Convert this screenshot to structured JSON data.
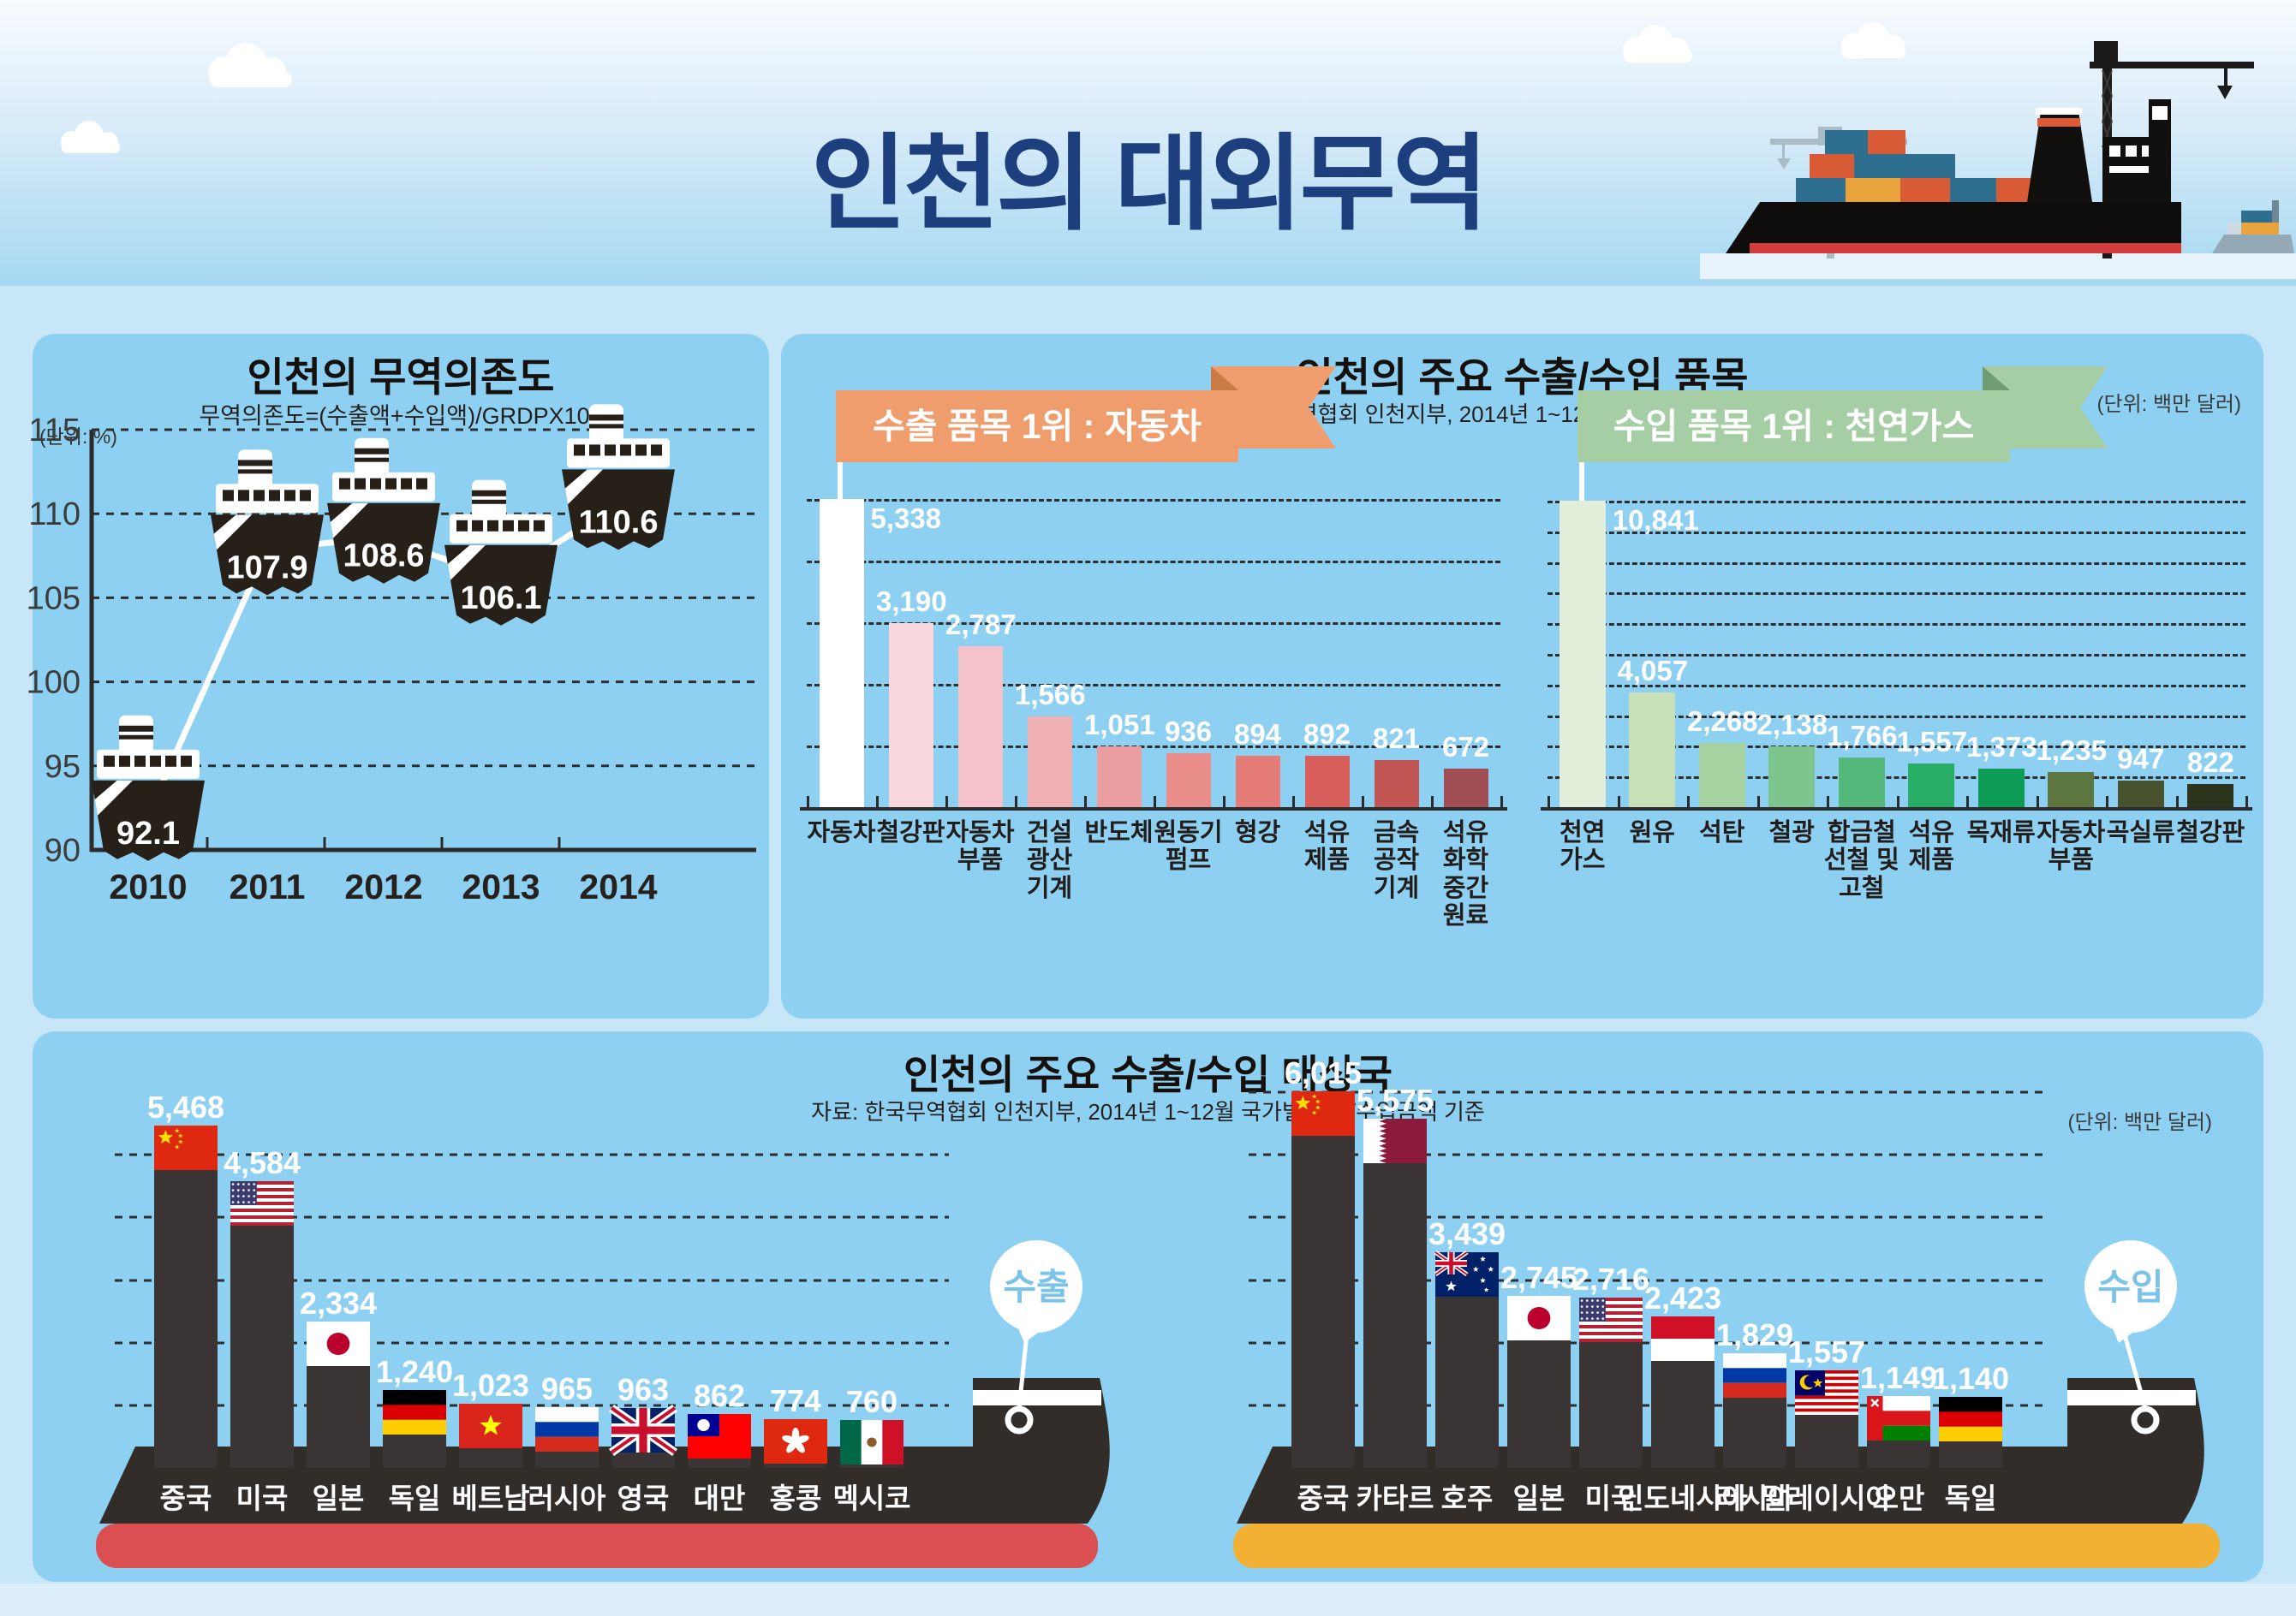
{
  "header": {
    "title": "인천의 대외무역",
    "illustration": "container-ship-port-illustration"
  },
  "panels": {
    "dependency": {
      "title": "인천의 무역의존도",
      "subtitle": "무역의존도=(수출액+수입액)/GRDPX100",
      "unit": "(단위: %)"
    },
    "items": {
      "title": "인천의 주요 수출/수입 품목",
      "source": "자료: 한국무역협회 인천지부, 2014년 1~12월 품목별 수출/수입 금액 기준",
      "unit": "(단위: 백만 달러)"
    },
    "partners": {
      "title": "인천의 주요 수출/수입 대상국",
      "source": "자료: 한국무역협회 인천지부, 2014년 1~12월 국가별 수출/수입금액 기준",
      "unit": "(단위: 백만 달러)"
    }
  },
  "chart_data": [
    {
      "id": "trade_dependency",
      "type": "line",
      "title": "인천의 무역의존도",
      "subtitle": "무역의존도=(수출액+수입액)/GRDPX100",
      "unit": "%",
      "categories": [
        "2010",
        "2011",
        "2012",
        "2013",
        "2014"
      ],
      "values": [
        92.1,
        107.9,
        108.6,
        106.1,
        110.6
      ],
      "display_values": [
        "92.1",
        "107.9",
        "108.6",
        "106.1",
        "110.6"
      ],
      "ylim": [
        90,
        115
      ],
      "y_ticks": [
        115,
        110,
        105,
        100,
        95,
        90
      ],
      "grid": "dashed-horizontal",
      "marker": "ship-icon",
      "line_color": "#ffffff"
    },
    {
      "id": "export_items",
      "type": "bar",
      "ribbon": "수출 품목 1위 : 자동차",
      "ribbon_color": "#f09d6e",
      "ribbon_fold_color": "#c97a45",
      "unit": "백만 달러",
      "categories": [
        "자동차",
        "철강판",
        "자동차 부품",
        "건설 광산 기계",
        "반도체",
        "원동기 펌프",
        "형강",
        "석유 제품",
        "금속 공작 기계",
        "석유 화학 중간 원료"
      ],
      "category_lines": [
        [
          "자동차"
        ],
        [
          "철강판"
        ],
        [
          "자동차",
          "부품"
        ],
        [
          "건설",
          "광산",
          "기계"
        ],
        [
          "반도체"
        ],
        [
          "원동기",
          "펌프"
        ],
        [
          "형강"
        ],
        [
          "석유",
          "제품"
        ],
        [
          "금속",
          "공작",
          "기계"
        ],
        [
          "석유",
          "화학",
          "중간",
          "원료"
        ]
      ],
      "values": [
        5338,
        3190,
        2787,
        1566,
        1051,
        936,
        894,
        892,
        821,
        672
      ],
      "display_values": [
        "5,338",
        "3,190",
        "2,787",
        "1,566",
        "1,051",
        "936",
        "894",
        "892",
        "821",
        "672"
      ],
      "bar_colors": [
        "#ffffff",
        "#f8d8de",
        "#f3c3c9",
        "#eeb0b3",
        "#eb9e9f",
        "#e88d8a",
        "#e47b76",
        "#d95f5c",
        "#c25654",
        "#a04e53"
      ],
      "ylim": [
        0,
        5338
      ],
      "grid": "dashed-horizontal"
    },
    {
      "id": "import_items",
      "type": "bar",
      "ribbon": "수입 품목 1위 : 천연가스",
      "ribbon_color": "#a6cea5",
      "ribbon_fold_color": "#6f9c73",
      "unit": "백만 달러",
      "categories": [
        "천연 가스",
        "원유",
        "석탄",
        "철광",
        "합금철 선철 및 고철",
        "석유 제품",
        "목재류",
        "자동차 부품",
        "곡실류",
        "철강판"
      ],
      "category_lines": [
        [
          "천연",
          "가스"
        ],
        [
          "원유"
        ],
        [
          "석탄"
        ],
        [
          "철광"
        ],
        [
          "합금철",
          "선철 및",
          "고철"
        ],
        [
          "석유",
          "제품"
        ],
        [
          "목재류"
        ],
        [
          "자동차",
          "부품"
        ],
        [
          "곡실류"
        ],
        [
          "철강판"
        ]
      ],
      "values": [
        10841,
        4057,
        2268,
        2138,
        1766,
        1557,
        1373,
        1235,
        947,
        822
      ],
      "display_values": [
        "10,841",
        "4,057",
        "2,268",
        "2,138",
        "1,766",
        "1,557",
        "1,373",
        "1,235",
        "947",
        "822"
      ],
      "bar_colors": [
        "#e4efdb",
        "#c8e0b8",
        "#a5d2a0",
        "#7ec48e",
        "#53b87a",
        "#28ad67",
        "#0d9c55",
        "#5d753f",
        "#48522e",
        "#2c341d"
      ],
      "ylim": [
        0,
        10841
      ],
      "grid": "dashed-horizontal"
    },
    {
      "id": "export_partners",
      "type": "bar",
      "badge": "수출",
      "unit": "백만 달러",
      "categories": [
        "중국",
        "미국",
        "일본",
        "독일",
        "베트남",
        "러시아",
        "영국",
        "대만",
        "홍콩",
        "멕시코"
      ],
      "flags": [
        "cn",
        "us",
        "jp",
        "de",
        "vn",
        "ru",
        "gb",
        "tw",
        "hk",
        "mx"
      ],
      "values": [
        5468,
        4584,
        2334,
        1240,
        1023,
        965,
        963,
        862,
        774,
        760
      ],
      "display_values": [
        "5,468",
        "4,584",
        "2,334",
        "1,240",
        "1,023",
        "965",
        "963",
        "862",
        "774",
        "760"
      ],
      "bar_color": "#3a3534",
      "hull_color": "#d94f52",
      "badge_text_color": "#7cc3e8",
      "grid_interval": 1000,
      "grid": "dashed-horizontal"
    },
    {
      "id": "import_partners",
      "type": "bar",
      "badge": "수입",
      "unit": "백만 달러",
      "categories": [
        "중국",
        "카타르",
        "호주",
        "일본",
        "미국",
        "인도네시아",
        "러시아",
        "말레이시아",
        "오만",
        "독일"
      ],
      "flags": [
        "cn",
        "qa",
        "au",
        "jp",
        "us",
        "id",
        "ru",
        "my",
        "om",
        "de"
      ],
      "values": [
        6015,
        5575,
        3439,
        2745,
        2716,
        2423,
        1829,
        1557,
        1149,
        1140
      ],
      "display_values": [
        "6,015",
        "5,575",
        "3,439",
        "2,745",
        "2,716",
        "2,423",
        "1,829",
        "1,557",
        "1,149",
        "1,140"
      ],
      "bar_color": "#3a3534",
      "hull_color": "#f2b134",
      "badge_text_color": "#7cc3e8",
      "grid_interval": 1000,
      "grid": "dashed-horizontal"
    }
  ],
  "flag_names": {
    "cn": "china",
    "us": "usa",
    "jp": "japan",
    "de": "germany",
    "vn": "vietnam",
    "ru": "russia",
    "gb": "uk",
    "tw": "taiwan",
    "hk": "hong-kong",
    "mx": "mexico",
    "qa": "qatar",
    "au": "australia",
    "id": "indonesia",
    "my": "malaysia",
    "om": "oman"
  }
}
